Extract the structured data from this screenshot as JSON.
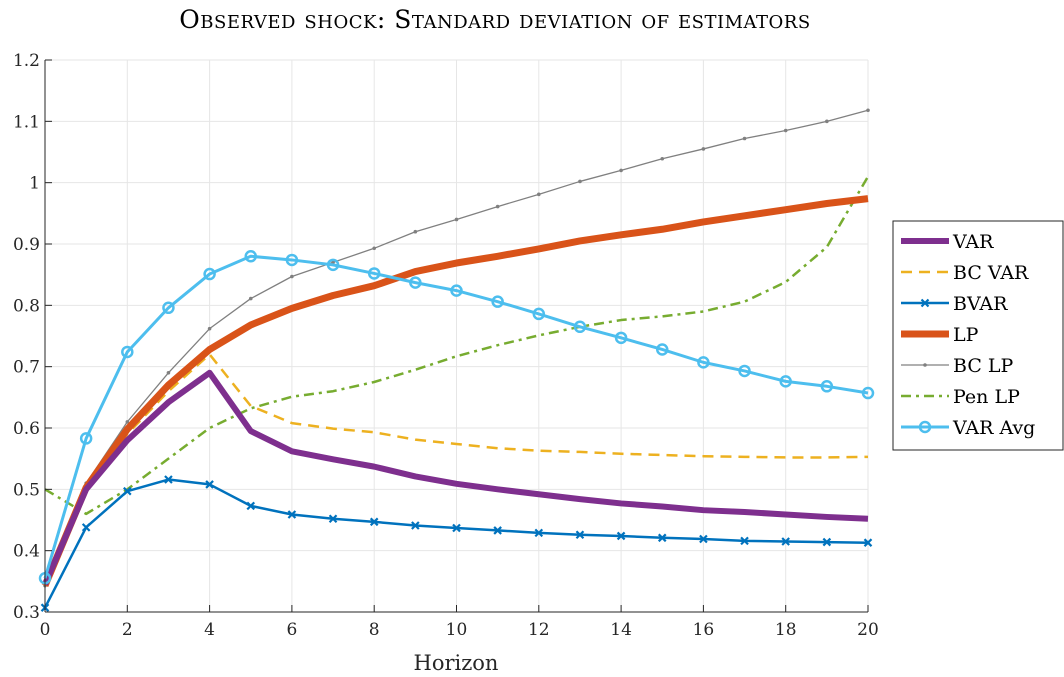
{
  "chart_data": {
    "type": "line",
    "title": "Observed shock: Standard deviation of estimators",
    "xlabel": "Horizon",
    "ylabel": "",
    "xlim": [
      0,
      20
    ],
    "ylim": [
      0.3,
      1.2
    ],
    "xticks": [
      0,
      2,
      4,
      6,
      8,
      10,
      12,
      14,
      16,
      18,
      20
    ],
    "yticks": [
      0.3,
      0.4,
      0.5,
      0.6,
      0.7,
      0.8,
      0.9,
      1,
      1.1,
      1.2
    ],
    "xtick_labels": [
      "0",
      "2",
      "4",
      "6",
      "8",
      "10",
      "12",
      "14",
      "16",
      "18",
      "20"
    ],
    "ytick_labels": [
      "0.3",
      "0.4",
      "0.5",
      "0.6",
      "0.7",
      "0.8",
      "0.9",
      "1",
      "1.1",
      "1.2"
    ],
    "grid": true,
    "legend_position": "outside-right",
    "x": [
      0,
      1,
      2,
      3,
      4,
      5,
      6,
      7,
      8,
      9,
      10,
      11,
      12,
      13,
      14,
      15,
      16,
      17,
      18,
      19,
      20
    ],
    "series": [
      {
        "name": "VAR",
        "color": "#7E2F8E",
        "style": "solid-thick",
        "values": [
          0.345,
          0.5,
          0.58,
          0.642,
          0.69,
          0.595,
          0.562,
          0.549,
          0.537,
          0.521,
          0.509,
          0.5,
          0.492,
          0.484,
          0.477,
          0.472,
          0.466,
          0.463,
          0.459,
          0.455,
          0.452
        ]
      },
      {
        "name": "BC VAR",
        "color": "#EDB120",
        "style": "dashed",
        "values": [
          0.345,
          0.5,
          0.59,
          0.66,
          0.72,
          0.636,
          0.608,
          0.599,
          0.593,
          0.581,
          0.574,
          0.567,
          0.563,
          0.561,
          0.558,
          0.556,
          0.554,
          0.553,
          0.552,
          0.552,
          0.553
        ]
      },
      {
        "name": "BVAR",
        "color": "#0072BD",
        "style": "solid-x",
        "values": [
          0.307,
          0.438,
          0.497,
          0.516,
          0.508,
          0.473,
          0.459,
          0.452,
          0.447,
          0.441,
          0.437,
          0.433,
          0.429,
          0.426,
          0.424,
          0.421,
          0.419,
          0.416,
          0.415,
          0.414,
          0.413
        ]
      },
      {
        "name": "LP",
        "color": "#D95319",
        "style": "solid-thicker",
        "values": [
          0.343,
          0.503,
          0.598,
          0.67,
          0.728,
          0.768,
          0.795,
          0.816,
          0.832,
          0.855,
          0.869,
          0.88,
          0.892,
          0.905,
          0.915,
          0.924,
          0.936,
          0.946,
          0.956,
          0.966,
          0.974
        ]
      },
      {
        "name": "BC LP",
        "color": "#808080",
        "style": "solid-dot",
        "values": [
          0.343,
          0.51,
          0.61,
          0.69,
          0.762,
          0.811,
          0.847,
          0.87,
          0.893,
          0.92,
          0.94,
          0.961,
          0.981,
          1.002,
          1.02,
          1.039,
          1.055,
          1.072,
          1.085,
          1.1,
          1.118
        ]
      },
      {
        "name": "Pen LP",
        "color": "#77AC30",
        "style": "dashdot",
        "values": [
          0.5,
          0.46,
          0.5,
          0.55,
          0.6,
          0.632,
          0.651,
          0.66,
          0.675,
          0.695,
          0.717,
          0.735,
          0.751,
          0.765,
          0.776,
          0.782,
          0.79,
          0.806,
          0.838,
          0.895,
          1.01
        ]
      },
      {
        "name": "VAR Avg",
        "color": "#4DBEEE",
        "style": "solid-circle",
        "values": [
          0.355,
          0.583,
          0.724,
          0.796,
          0.851,
          0.88,
          0.874,
          0.866,
          0.852,
          0.837,
          0.824,
          0.806,
          0.786,
          0.765,
          0.747,
          0.728,
          0.707,
          0.693,
          0.676,
          0.668,
          0.657
        ]
      }
    ]
  }
}
